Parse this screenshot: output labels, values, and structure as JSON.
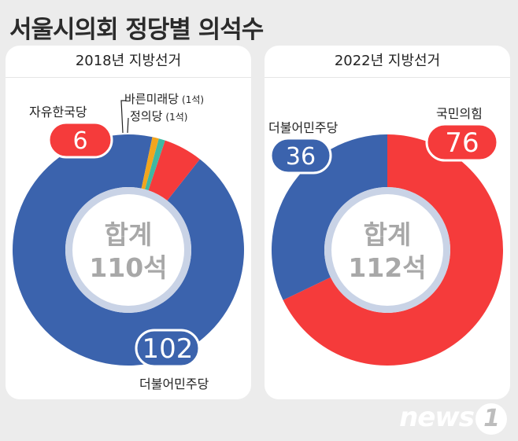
{
  "title": "서울시의회 정당별 의석수",
  "logo": {
    "text": "news",
    "mark": "1"
  },
  "colors": {
    "blue": "#3b63ad",
    "red": "#f53b3b",
    "teal": "#3fb8a2",
    "orange": "#f2a51d",
    "ring": "#c9d3e6",
    "center": "#ffffff"
  },
  "chart_data": [
    {
      "type": "pie",
      "title": "2018년 지방선거",
      "center_label": "합계",
      "center_value": "110석",
      "slices": [
        {
          "name": "더불어민주당",
          "value": 102,
          "color": "#3b63ad"
        },
        {
          "name": "자유한국당",
          "value": 6,
          "color": "#f53b3b"
        },
        {
          "name": "바른미래당",
          "value": 1,
          "color": "#3fb8a2",
          "sublabel": "(1석)"
        },
        {
          "name": "정의당",
          "value": 1,
          "color": "#f2a51d",
          "sublabel": "(1석)"
        }
      ]
    },
    {
      "type": "pie",
      "title": "2022년 지방선거",
      "center_label": "합계",
      "center_value": "112석",
      "slices": [
        {
          "name": "국민의힘",
          "value": 76,
          "color": "#f53b3b"
        },
        {
          "name": "더불어민주당",
          "value": 36,
          "color": "#3b63ad"
        }
      ]
    }
  ]
}
